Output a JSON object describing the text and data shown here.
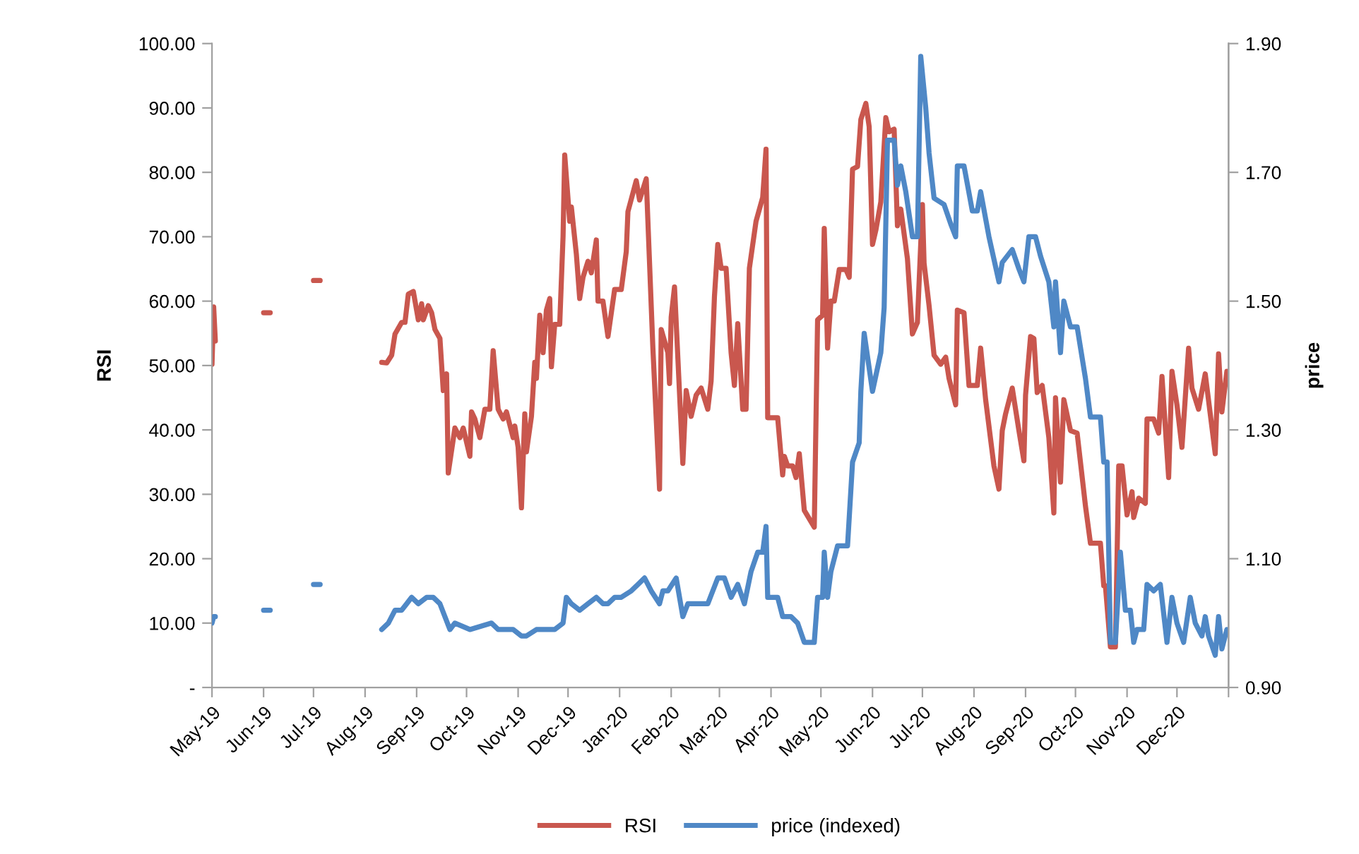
{
  "chart_data": {
    "type": "line",
    "ylabel": "RSI",
    "y2label": "price",
    "xlim": [
      "2019-05-01",
      "2021-01-01"
    ],
    "xticks": [
      {
        "value": "2019-05-01",
        "label": "May-19"
      },
      {
        "value": "2019-06-01",
        "label": "Jun-19"
      },
      {
        "value": "2019-07-01",
        "label": "Jul-19"
      },
      {
        "value": "2019-08-01",
        "label": "Aug-19"
      },
      {
        "value": "2019-09-01",
        "label": "Sep-19"
      },
      {
        "value": "2019-10-01",
        "label": "Oct-19"
      },
      {
        "value": "2019-11-01",
        "label": "Nov-19"
      },
      {
        "value": "2019-12-01",
        "label": "Dec-19"
      },
      {
        "value": "2020-01-01",
        "label": "Jan-20"
      },
      {
        "value": "2020-02-01",
        "label": "Feb-20"
      },
      {
        "value": "2020-03-01",
        "label": "Mar-20"
      },
      {
        "value": "2020-04-01",
        "label": "Apr-20"
      },
      {
        "value": "2020-05-01",
        "label": "May-20"
      },
      {
        "value": "2020-06-01",
        "label": "Jun-20"
      },
      {
        "value": "2020-07-01",
        "label": "Jul-20"
      },
      {
        "value": "2020-08-01",
        "label": "Aug-20"
      },
      {
        "value": "2020-09-01",
        "label": "Sep-20"
      },
      {
        "value": "2020-10-01",
        "label": "Oct-20"
      },
      {
        "value": "2020-11-01",
        "label": "Nov-20"
      },
      {
        "value": "2020-12-01",
        "label": "Dec-20"
      },
      {
        "value": "2021-01-01",
        "label": null
      }
    ],
    "ylim": [
      0,
      100
    ],
    "yticks": [
      {
        "value": 0,
        "label": "-"
      },
      {
        "value": 10,
        "label": "10.00"
      },
      {
        "value": 20,
        "label": "20.00"
      },
      {
        "value": 30,
        "label": "30.00"
      },
      {
        "value": 40,
        "label": "40.00"
      },
      {
        "value": 50,
        "label": "50.00"
      },
      {
        "value": 60,
        "label": "60.00"
      },
      {
        "value": 70,
        "label": "70.00"
      },
      {
        "value": 80,
        "label": "80.00"
      },
      {
        "value": 90,
        "label": "90.00"
      },
      {
        "value": 100,
        "label": "100.00"
      }
    ],
    "y2lim": [
      0.9,
      1.9
    ],
    "y2ticks": [
      {
        "value": 0.9,
        "label": "0.90"
      },
      {
        "value": 1.1,
        "label": "1.10"
      },
      {
        "value": 1.3,
        "label": "1.30"
      },
      {
        "value": 1.5,
        "label": "1.50"
      },
      {
        "value": 1.7,
        "label": "1.70"
      },
      {
        "value": 1.9,
        "label": "1.90"
      }
    ],
    "grid": false,
    "legend": "bottom",
    "marker": "none",
    "line_style": "solid",
    "series": [
      {
        "name": "RSI",
        "color": "#c9574e",
        "x": [
          "2019-05-01",
          "2019-05-02",
          "2019-05-03",
          "2019-05-18",
          "2019-06-01",
          "2019-06-05",
          "2019-06-18",
          "2019-07-01",
          "2019-07-05",
          "2019-07-20",
          "2019-08-11",
          "2019-08-14",
          "2019-08-17",
          "2019-08-19",
          "2019-08-23",
          "2019-08-25",
          "2019-08-27",
          "2019-08-30",
          "2019-09-02",
          "2019-09-04",
          "2019-09-05",
          "2019-09-08",
          "2019-09-10",
          "2019-09-12",
          "2019-09-15",
          "2019-09-17",
          "2019-09-19",
          "2019-09-20",
          "2019-09-24",
          "2019-09-27",
          "2019-09-29",
          "2019-10-03",
          "2019-10-04",
          "2019-10-06",
          "2019-10-09",
          "2019-10-12",
          "2019-10-15",
          "2019-10-17",
          "2019-10-20",
          "2019-10-23",
          "2019-10-25",
          "2019-10-29",
          "2019-10-30",
          "2019-11-01",
          "2019-11-03",
          "2019-11-05",
          "2019-11-06",
          "2019-11-09",
          "2019-11-11",
          "2019-11-12",
          "2019-11-14",
          "2019-11-16",
          "2019-11-18",
          "2019-11-20",
          "2019-11-21",
          "2019-11-23",
          "2019-11-26",
          "2019-11-28",
          "2019-11-29",
          "2019-12-02",
          "2019-12-03",
          "2019-12-06",
          "2019-12-08",
          "2019-12-10",
          "2019-12-13",
          "2019-12-15",
          "2019-12-18",
          "2019-12-19",
          "2019-12-22",
          "2019-12-25",
          "2019-12-29",
          "2020-01-02",
          "2020-01-05",
          "2020-01-06",
          "2020-01-11",
          "2020-01-13",
          "2020-01-17",
          "2020-01-21",
          "2020-01-25",
          "2020-01-26",
          "2020-01-30",
          "2020-01-31",
          "2020-02-01",
          "2020-02-03",
          "2020-02-08",
          "2020-02-10",
          "2020-02-13",
          "2020-02-16",
          "2020-02-19",
          "2020-02-23",
          "2020-02-25",
          "2020-02-27",
          "2020-02-29",
          "2020-03-02",
          "2020-03-05",
          "2020-03-08",
          "2020-03-10",
          "2020-03-12",
          "2020-03-15",
          "2020-03-17",
          "2020-03-19",
          "2020-03-23",
          "2020-03-27",
          "2020-03-29",
          "2020-03-30",
          "2020-04-05",
          "2020-04-08",
          "2020-04-09",
          "2020-04-11",
          "2020-04-14",
          "2020-04-16",
          "2020-04-18",
          "2020-04-21",
          "2020-04-27",
          "2020-04-29",
          "2020-05-02",
          "2020-05-03",
          "2020-05-05",
          "2020-05-07",
          "2020-05-09",
          "2020-05-12",
          "2020-05-16",
          "2020-05-18",
          "2020-05-20",
          "2020-05-23",
          "2020-05-25",
          "2020-05-28",
          "2020-05-30",
          "2020-06-01",
          "2020-06-03",
          "2020-06-06",
          "2020-06-09",
          "2020-06-11",
          "2020-06-14",
          "2020-06-16",
          "2020-06-18",
          "2020-06-22",
          "2020-06-25",
          "2020-06-28",
          "2020-07-01",
          "2020-07-02",
          "2020-07-05",
          "2020-07-08",
          "2020-07-12",
          "2020-07-15",
          "2020-07-17",
          "2020-07-21",
          "2020-07-22",
          "2020-07-26",
          "2020-07-29",
          "2020-08-03",
          "2020-08-05",
          "2020-08-08",
          "2020-08-13",
          "2020-08-16",
          "2020-08-18",
          "2020-08-20",
          "2020-08-24",
          "2020-08-28",
          "2020-08-31",
          "2020-09-01",
          "2020-09-04",
          "2020-09-06",
          "2020-09-08",
          "2020-09-11",
          "2020-09-15",
          "2020-09-18",
          "2020-09-19",
          "2020-09-22",
          "2020-09-24",
          "2020-09-28",
          "2020-10-02",
          "2020-10-07",
          "2020-10-10",
          "2020-10-16",
          "2020-10-18",
          "2020-10-19",
          "2020-10-22",
          "2020-10-25",
          "2020-10-27",
          "2020-10-29",
          "2020-11-01",
          "2020-11-04",
          "2020-11-05",
          "2020-11-08",
          "2020-11-12",
          "2020-11-13",
          "2020-11-17",
          "2020-11-20",
          "2020-11-22",
          "2020-11-26",
          "2020-11-28",
          "2020-12-01",
          "2020-12-04",
          "2020-12-08",
          "2020-12-10",
          "2020-12-14",
          "2020-12-18",
          "2020-12-21",
          "2020-12-24",
          "2020-12-26",
          "2020-12-28",
          "2020-12-31"
        ],
        "values": [
          50.2,
          59.1,
          53.8,
          null,
          58.2,
          58.2,
          null,
          63.2,
          63.2,
          null,
          50.5,
          50.4,
          51.6,
          54.9,
          56.7,
          56.7,
          61.1,
          61.5,
          57.1,
          59.6,
          57.1,
          59.3,
          58.2,
          55.6,
          54.2,
          46.1,
          48.7,
          33.3,
          40.3,
          38.8,
          40.3,
          35.9,
          42.8,
          41.7,
          38.8,
          43.2,
          43.2,
          52.3,
          43.2,
          41.7,
          42.8,
          38.8,
          40.6,
          37.3,
          27.9,
          42.5,
          36.6,
          42.1,
          50.5,
          48.0,
          57.8,
          52.0,
          58.6,
          60.4,
          49.8,
          56.4,
          56.4,
          70.0,
          82.7,
          72.4,
          74.6,
          67.3,
          60.4,
          63.7,
          66.2,
          64.4,
          69.5,
          60.0,
          60.0,
          54.5,
          61.8,
          61.8,
          67.7,
          73.9,
          78.7,
          75.7,
          79.0,
          52.7,
          30.8,
          55.6,
          52.0,
          47.2,
          57.5,
          62.2,
          34.8,
          46.1,
          42.1,
          45.4,
          46.5,
          43.2,
          47.6,
          60.7,
          68.8,
          65.1,
          65.1,
          52.0,
          46.9,
          56.5,
          43.2,
          43.2,
          65.1,
          72.4,
          76.1,
          83.6,
          41.9,
          41.9,
          33.0,
          35.9,
          34.4,
          34.4,
          32.6,
          36.3,
          27.5,
          24.9,
          57.1,
          57.8,
          71.3,
          52.7,
          60.0,
          60.0,
          64.9,
          64.9,
          63.7,
          80.5,
          80.9,
          88.2,
          90.7,
          87.1,
          68.8,
          71.0,
          75.4,
          88.5,
          86.3,
          86.7,
          71.7,
          74.3,
          66.6,
          54.9,
          56.7,
          75.0,
          65.9,
          59.3,
          51.6,
          50.2,
          51.3,
          48.0,
          43.9,
          58.6,
          58.2,
          46.9,
          46.9,
          52.7,
          44.7,
          34.4,
          30.8,
          39.9,
          42.5,
          46.5,
          39.9,
          35.2,
          45.4,
          54.5,
          54.2,
          45.8,
          46.9,
          38.8,
          27.1,
          45.0,
          31.9,
          44.7,
          39.9,
          39.5,
          28.2,
          22.4,
          22.4,
          15.8,
          15.8,
          6.3,
          6.3,
          34.4,
          34.4,
          26.8,
          30.4,
          26.4,
          29.4,
          28.6,
          41.7,
          41.7,
          39.5,
          48.3,
          32.6,
          49.1,
          43.9,
          37.3,
          52.7,
          46.5,
          43.2,
          48.7,
          42.5,
          36.3,
          51.8,
          42.8,
          49.1
        ]
      },
      {
        "name": "price (indexed)",
        "color": "#4f88c6",
        "axis": "y2",
        "x": [
          "2019-05-01",
          "2019-05-02",
          "2019-05-03",
          "2019-05-18",
          "2019-06-01",
          "2019-06-05",
          "2019-06-18",
          "2019-07-01",
          "2019-07-05",
          "2019-07-20",
          "2019-08-11",
          "2019-08-15",
          "2019-08-19",
          "2019-08-23",
          "2019-08-26",
          "2019-08-29",
          "2019-09-02",
          "2019-09-07",
          "2019-09-11",
          "2019-09-15",
          "2019-09-18",
          "2019-09-21",
          "2019-09-24",
          "2019-10-03",
          "2019-10-16",
          "2019-10-20",
          "2019-10-29",
          "2019-11-03",
          "2019-11-06",
          "2019-11-12",
          "2019-11-18",
          "2019-11-23",
          "2019-11-28",
          "2019-11-30",
          "2019-12-03",
          "2019-12-08",
          "2019-12-13",
          "2019-12-18",
          "2019-12-22",
          "2019-12-25",
          "2019-12-29",
          "2020-01-02",
          "2020-01-08",
          "2020-01-12",
          "2020-01-16",
          "2020-01-20",
          "2020-01-25",
          "2020-01-27",
          "2020-01-30",
          "2020-02-04",
          "2020-02-08",
          "2020-02-11",
          "2020-02-13",
          "2020-02-18",
          "2020-02-23",
          "2020-02-29",
          "2020-03-04",
          "2020-03-08",
          "2020-03-12",
          "2020-03-16",
          "2020-03-20",
          "2020-03-24",
          "2020-03-27",
          "2020-03-29",
          "2020-03-30",
          "2020-04-05",
          "2020-04-08",
          "2020-04-13",
          "2020-04-17",
          "2020-04-21",
          "2020-04-27",
          "2020-04-29",
          "2020-05-02",
          "2020-05-03",
          "2020-05-05",
          "2020-05-07",
          "2020-05-11",
          "2020-05-17",
          "2020-05-20",
          "2020-05-24",
          "2020-05-25",
          "2020-05-27",
          "2020-06-01",
          "2020-06-06",
          "2020-06-08",
          "2020-06-10",
          "2020-06-14",
          "2020-06-16",
          "2020-06-18",
          "2020-06-21",
          "2020-06-25",
          "2020-06-28",
          "2020-06-30",
          "2020-07-03",
          "2020-07-05",
          "2020-07-08",
          "2020-07-14",
          "2020-07-18",
          "2020-07-21",
          "2020-07-22",
          "2020-07-26",
          "2020-07-31",
          "2020-08-03",
          "2020-08-05",
          "2020-08-10",
          "2020-08-16",
          "2020-08-18",
          "2020-08-24",
          "2020-08-28",
          "2020-08-31",
          "2020-09-03",
          "2020-09-07",
          "2020-09-10",
          "2020-09-15",
          "2020-09-18",
          "2020-09-19",
          "2020-09-22",
          "2020-09-24",
          "2020-09-28",
          "2020-10-02",
          "2020-10-07",
          "2020-10-10",
          "2020-10-16",
          "2020-10-18",
          "2020-10-20",
          "2020-10-22",
          "2020-10-25",
          "2020-10-28",
          "2020-10-31",
          "2020-11-03",
          "2020-11-05",
          "2020-11-07",
          "2020-11-11",
          "2020-11-13",
          "2020-11-17",
          "2020-11-21",
          "2020-11-25",
          "2020-11-28",
          "2020-12-01",
          "2020-12-05",
          "2020-12-09",
          "2020-12-12",
          "2020-12-16",
          "2020-12-18",
          "2020-12-20",
          "2020-12-24",
          "2020-12-26",
          "2020-12-28",
          "2020-12-31"
        ],
        "values": [
          1.0,
          1.01,
          1.01,
          null,
          1.02,
          1.02,
          null,
          1.06,
          1.06,
          null,
          0.99,
          1.0,
          1.02,
          1.02,
          1.03,
          1.04,
          1.03,
          1.04,
          1.04,
          1.03,
          1.01,
          0.99,
          1.0,
          0.99,
          1.0,
          0.99,
          0.99,
          0.98,
          0.98,
          0.99,
          0.99,
          0.99,
          1.0,
          1.04,
          1.03,
          1.02,
          1.03,
          1.04,
          1.03,
          1.03,
          1.04,
          1.04,
          1.05,
          1.06,
          1.07,
          1.05,
          1.03,
          1.05,
          1.05,
          1.07,
          1.01,
          1.03,
          1.03,
          1.03,
          1.03,
          1.07,
          1.07,
          1.04,
          1.06,
          1.03,
          1.08,
          1.11,
          1.11,
          1.15,
          1.04,
          1.04,
          1.01,
          1.01,
          1.0,
          0.97,
          0.97,
          1.04,
          1.04,
          1.11,
          1.04,
          1.08,
          1.12,
          1.12,
          1.25,
          1.28,
          1.36,
          1.45,
          1.36,
          1.42,
          1.49,
          1.75,
          1.75,
          1.68,
          1.71,
          1.67,
          1.6,
          1.6,
          1.88,
          1.8,
          1.73,
          1.66,
          1.65,
          1.62,
          1.6,
          1.71,
          1.71,
          1.64,
          1.64,
          1.67,
          1.6,
          1.53,
          1.56,
          1.58,
          1.55,
          1.53,
          1.6,
          1.6,
          1.57,
          1.53,
          1.46,
          1.53,
          1.42,
          1.5,
          1.46,
          1.46,
          1.38,
          1.32,
          1.32,
          1.25,
          1.25,
          0.97,
          0.97,
          1.11,
          1.02,
          1.02,
          0.97,
          0.99,
          0.99,
          1.06,
          1.05,
          1.06,
          0.97,
          1.04,
          1.0,
          0.97,
          1.04,
          1.0,
          0.98,
          1.01,
          0.98,
          0.95,
          1.01,
          0.96,
          0.99
        ]
      }
    ]
  }
}
